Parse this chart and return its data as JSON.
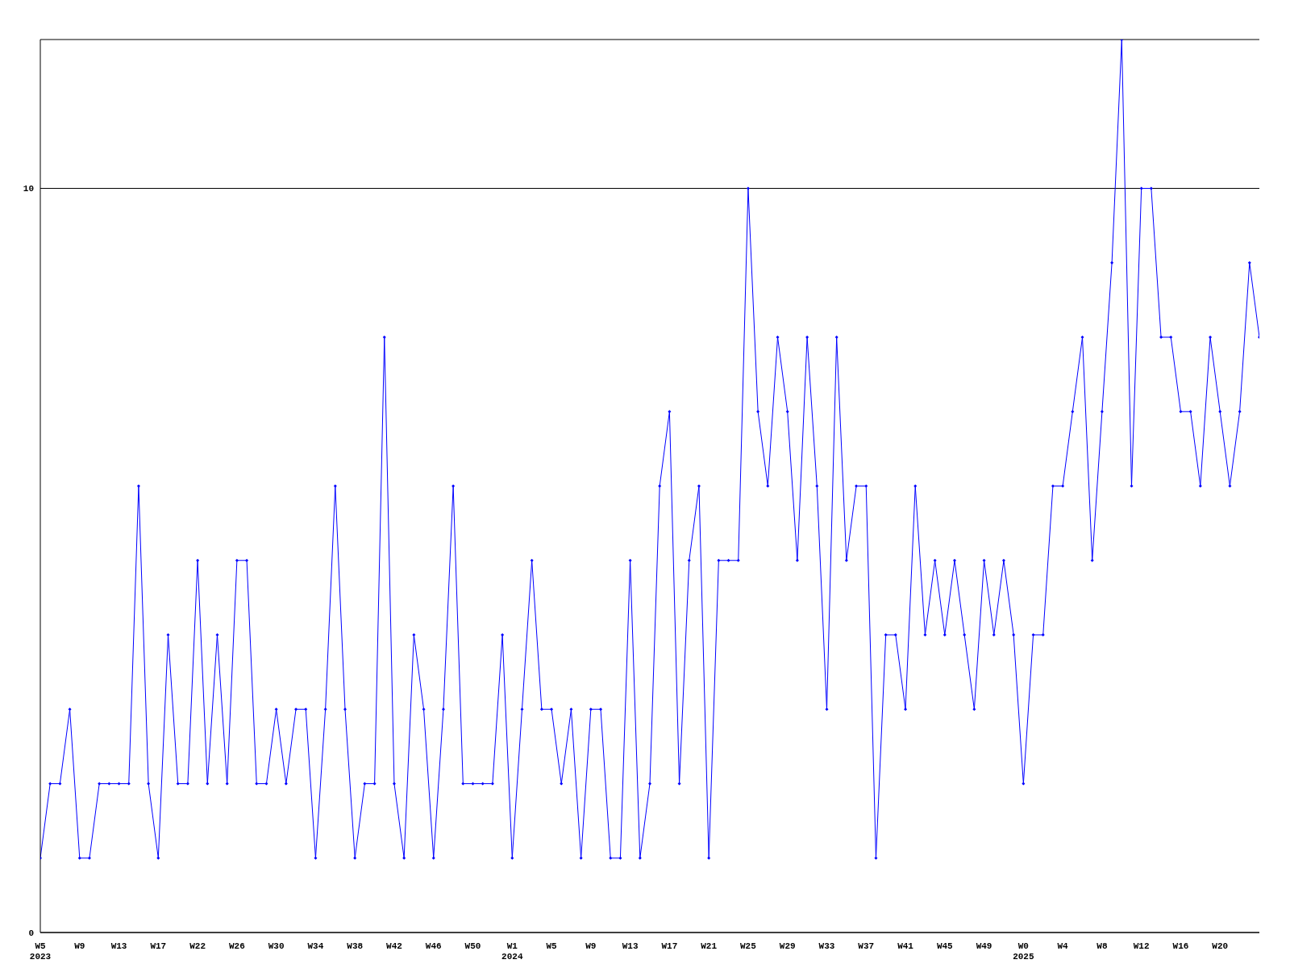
{
  "chart_data": {
    "type": "line",
    "categories": [
      "W5 2023",
      null,
      null,
      null,
      "W9",
      null,
      null,
      null,
      "W13",
      null,
      null,
      null,
      "W17",
      null,
      null,
      null,
      "W22",
      null,
      null,
      null,
      "W26",
      null,
      null,
      null,
      "W30",
      null,
      null,
      null,
      "W34",
      null,
      null,
      null,
      "W38",
      null,
      null,
      null,
      "W42",
      null,
      null,
      null,
      "W46",
      null,
      null,
      null,
      "W50",
      null,
      null,
      null,
      "W1 2024",
      null,
      null,
      null,
      "W5",
      null,
      null,
      null,
      "W9",
      null,
      null,
      null,
      "W13",
      null,
      null,
      null,
      "W17",
      null,
      null,
      null,
      "W21",
      null,
      null,
      null,
      "W25",
      null,
      null,
      null,
      "W29",
      null,
      null,
      null,
      "W33",
      null,
      null,
      null,
      "W37",
      null,
      null,
      null,
      "W41",
      null,
      null,
      null,
      "W45",
      null,
      null,
      null,
      "W49",
      null,
      null,
      null,
      "W0 2025",
      null,
      null,
      null,
      "W4",
      null,
      null,
      null,
      "W8",
      null,
      null,
      null,
      "W12",
      null,
      null,
      null,
      "W16",
      null,
      null,
      null,
      "W20",
      null,
      null,
      null,
      null
    ],
    "series": [
      {
        "color": "#0000ff",
        "values": [
          1,
          2,
          2,
          3,
          1,
          1,
          2,
          2,
          2,
          2,
          6,
          2,
          1,
          4,
          2,
          2,
          5,
          2,
          4,
          2,
          5,
          5,
          2,
          2,
          3,
          2,
          3,
          3,
          1,
          3,
          6,
          3,
          1,
          2,
          2,
          8,
          2,
          1,
          4,
          3,
          1,
          3,
          6,
          2,
          2,
          2,
          2,
          4,
          1,
          3,
          5,
          3,
          3,
          2,
          3,
          1,
          3,
          3,
          1,
          1,
          5,
          1,
          2,
          6,
          7,
          2,
          5,
          6,
          1,
          5,
          5,
          5,
          10,
          7,
          6,
          8,
          7,
          5,
          8,
          6,
          3,
          8,
          5,
          6,
          6,
          1,
          4,
          4,
          3,
          6,
          4,
          5,
          4,
          5,
          4,
          3,
          5,
          4,
          5,
          4,
          2,
          4,
          4,
          6,
          6,
          7,
          8,
          5,
          7,
          9,
          12,
          6,
          10,
          10,
          8,
          8,
          7,
          7,
          6,
          8,
          7,
          6,
          7,
          9,
          8
        ]
      }
    ],
    "ylim": [
      0,
      12
    ],
    "yticks": [
      0,
      10
    ],
    "grid": "y",
    "marker": "diamond",
    "line_style": "solid"
  }
}
